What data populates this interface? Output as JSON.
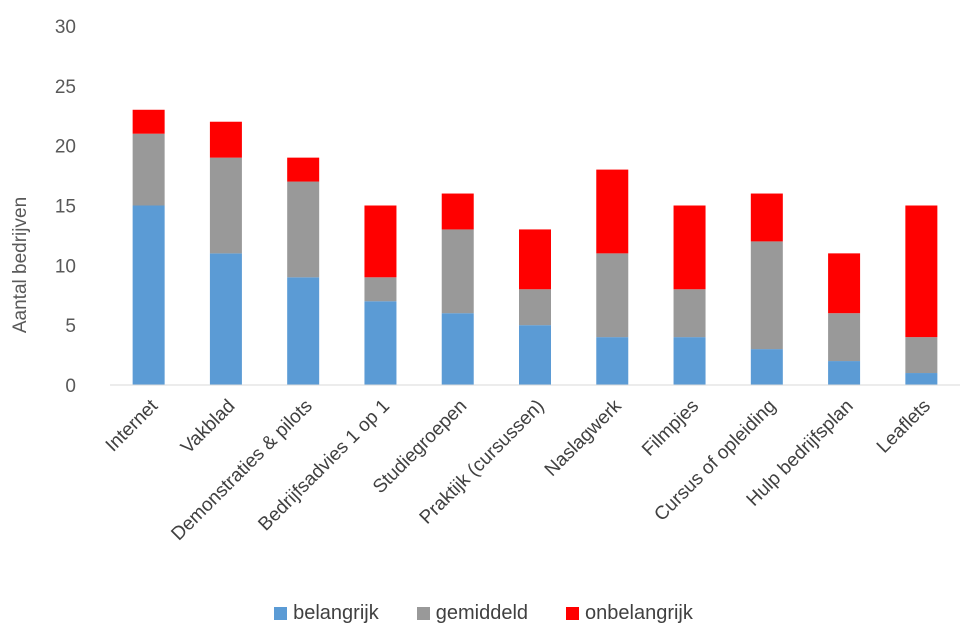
{
  "chart_data": {
    "type": "bar",
    "stacked": true,
    "ylabel": "Aantal bedrijven",
    "xlabel": "",
    "ylim": [
      0,
      30
    ],
    "yticks": [
      0,
      5,
      10,
      15,
      20,
      25,
      30
    ],
    "grid": false,
    "legend_position": "bottom",
    "categories": [
      "Internet",
      "Vakblad",
      "Demonstraties & pilots",
      "Bedrijfsadvies 1 op 1",
      "Studiegroepen",
      "Praktijk (cursussen)",
      "Naslagwerk",
      "Filmpjes",
      "Cursus of opleiding",
      "Hulp bedrijfsplan",
      "Leaflets"
    ],
    "series": [
      {
        "name": "belangrijk",
        "color": "#5b9bd5",
        "values": [
          15,
          11,
          9,
          7,
          6,
          5,
          4,
          4,
          3,
          2,
          1
        ]
      },
      {
        "name": "gemiddeld",
        "color": "#999999",
        "values": [
          6,
          8,
          8,
          2,
          7,
          3,
          7,
          4,
          9,
          4,
          3
        ]
      },
      {
        "name": "onbelangrijk",
        "color": "#ff0000",
        "values": [
          2,
          3,
          2,
          6,
          3,
          5,
          7,
          7,
          4,
          5,
          11
        ]
      }
    ]
  }
}
